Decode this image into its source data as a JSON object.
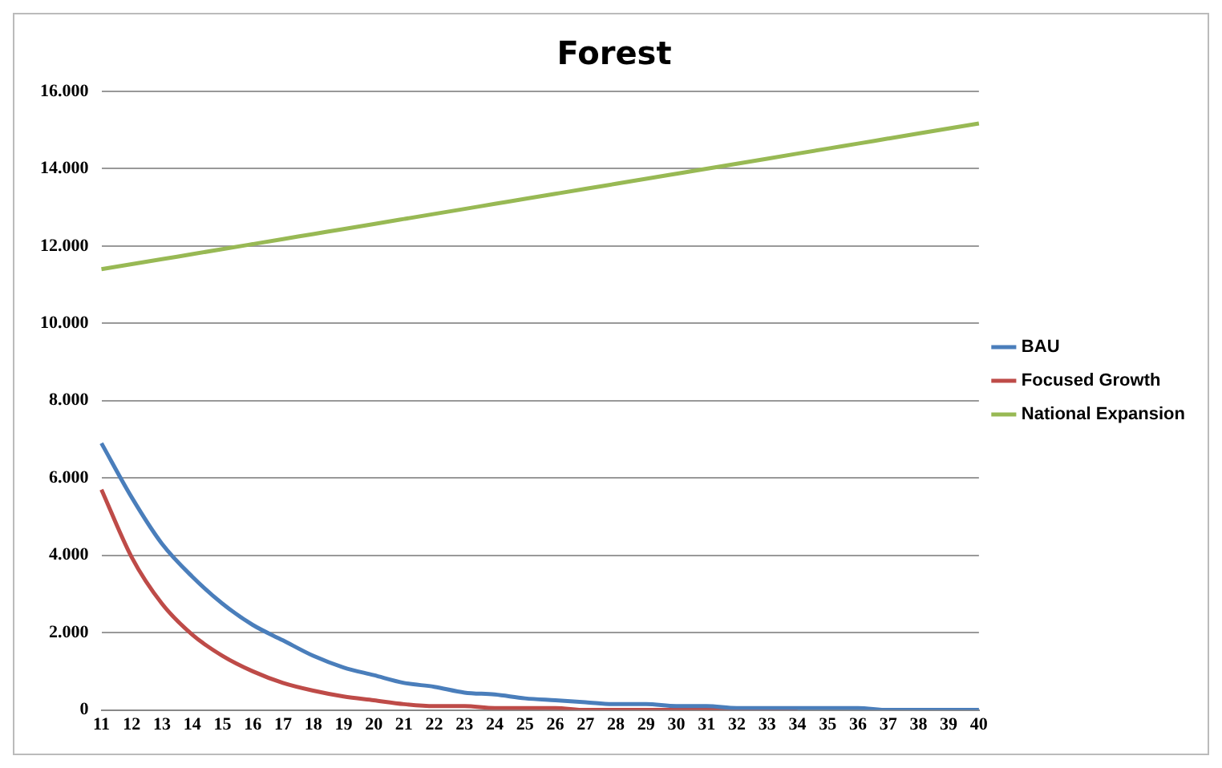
{
  "chart_data": {
    "type": "line",
    "title": "Forest",
    "categories": [
      "11",
      "12",
      "13",
      "14",
      "15",
      "16",
      "17",
      "18",
      "19",
      "20",
      "21",
      "22",
      "23",
      "24",
      "25",
      "26",
      "27",
      "28",
      "29",
      "30",
      "31",
      "32",
      "33",
      "34",
      "35",
      "36",
      "37",
      "38",
      "39",
      "40"
    ],
    "series": [
      {
        "name": "BAU",
        "color": "#4a7ebb",
        "values": [
          6900,
          5500,
          4300,
          3450,
          2750,
          2200,
          1800,
          1400,
          1100,
          900,
          700,
          600,
          450,
          400,
          300,
          250,
          200,
          150,
          150,
          100,
          100,
          50,
          50,
          50,
          50,
          50,
          0,
          0,
          0,
          0
        ]
      },
      {
        "name": "Focused Growth",
        "color": "#be4b48",
        "values": [
          5700,
          3950,
          2750,
          1950,
          1400,
          1000,
          700,
          500,
          350,
          250,
          150,
          100,
          100,
          50,
          50,
          50,
          0,
          0,
          0,
          0,
          0,
          0,
          0,
          0,
          null,
          null,
          null,
          null,
          null,
          null
        ]
      },
      {
        "name": "National Expansion",
        "color": "#98b954",
        "values": [
          11400,
          11530,
          11660,
          11790,
          11920,
          12050,
          12180,
          12310,
          12440,
          12570,
          12700,
          12830,
          12960,
          13090,
          13220,
          13350,
          13480,
          13610,
          13740,
          13870,
          14000,
          14130,
          14260,
          14390,
          14520,
          14650,
          14780,
          14910,
          15040,
          15170
        ]
      }
    ],
    "ylim": [
      0,
      16000
    ],
    "yticks": [
      {
        "value": 0,
        "label": "0"
      },
      {
        "value": 2000,
        "label": "2.000"
      },
      {
        "value": 4000,
        "label": "4.000"
      },
      {
        "value": 6000,
        "label": "6.000"
      },
      {
        "value": 8000,
        "label": "8.000"
      },
      {
        "value": 10000,
        "label": "10.000"
      },
      {
        "value": 12000,
        "label": "12.000"
      },
      {
        "value": 14000,
        "label": "14.000"
      },
      {
        "value": 16000,
        "label": "16.000"
      }
    ],
    "grid": "y",
    "legend": "right",
    "marker": "none",
    "line_style": "solid"
  }
}
